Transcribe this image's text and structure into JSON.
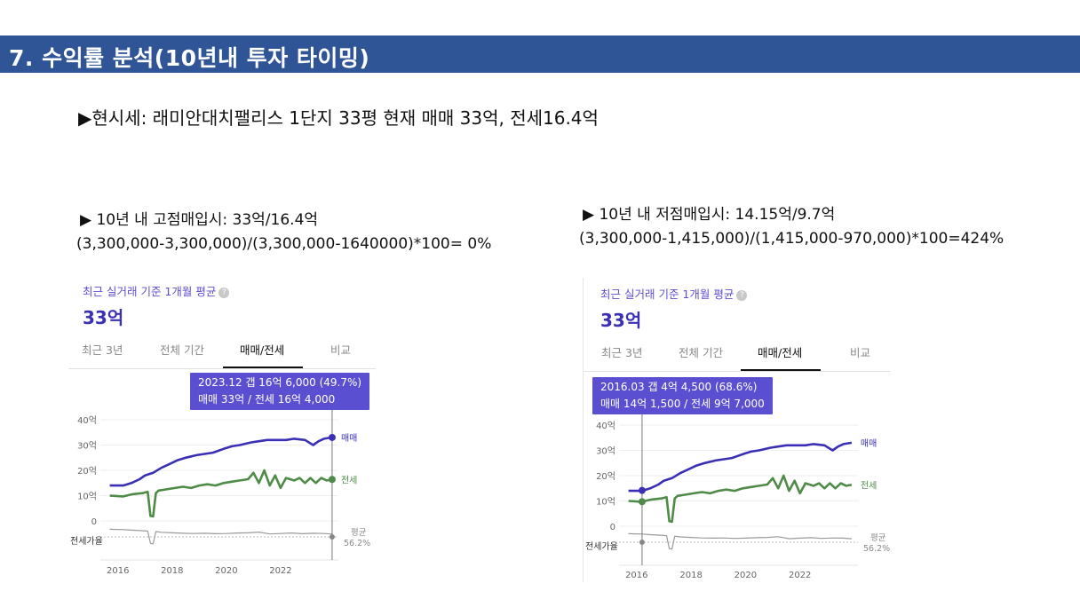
{
  "slide": {
    "title": "7. 수익률 분석(10년내 투자 타이밍)",
    "subtitle": "▶현시세: 래미안대치팰리스 1단지 33평 현재 매매 33억, 전세16.4억"
  },
  "calc_left": {
    "heading": "▶ 10년 내 고점매입시: 33억/16.4억",
    "formula": "(3,300,000-3,300,000)/(3,300,000-1640000)*100= 0%"
  },
  "calc_right": {
    "heading": "▶ 10년 내 저점매입시: 14.15억/9.7억",
    "formula": "(3,300,000-1,415,000)/(1,415,000-970,000)*100=424%"
  },
  "colors": {
    "header": "#2f5597",
    "sale": "#3a2fb5",
    "lease": "#4e8b46",
    "ratio": "#9a9a9a",
    "accent": "#5b4fd1"
  },
  "panels": [
    {
      "caption": "최근 실거래 기준 1개월 평균",
      "help_icon": "?",
      "price": "33억",
      "tabs": [
        "최근 3년",
        "전체 기간",
        "매매/전세",
        "비교"
      ],
      "active_tab": "매매/전세",
      "tooltip_line1": "2023.12  갭 16억 6,000 (49.7%)",
      "tooltip_line2": "매매 33억 / 전세 16억 4,000",
      "cursor_year": 2023.9,
      "marker_sale": 33,
      "marker_lease": 16.4
    },
    {
      "caption": "최근 실거래 기준 1개월 평균",
      "help_icon": "?",
      "price": "33억",
      "tabs": [
        "최근 3년",
        "전체 기간",
        "매매/전세",
        "비교"
      ],
      "active_tab": "매매/전세",
      "tooltip_line1": "2016.03  갭 4억 4,500 (68.6%)",
      "tooltip_line2": "매매 14억 1,500 / 전세 9억 7,000",
      "cursor_year": 2016.2,
      "marker_sale": 14.15,
      "marker_lease": 9.7
    }
  ],
  "chart_data": {
    "type": "line",
    "y_ticks": [
      "40억",
      "30억",
      "20억",
      "10억",
      "0"
    ],
    "ylim": [
      0,
      40
    ],
    "x_ticks": [
      "2016",
      "2018",
      "2020",
      "2022"
    ],
    "xlim": [
      2015.55,
      2024.0
    ],
    "ratio_label": "전세가율",
    "ratio_avg_label": "평균",
    "ratio_avg_value": "56.2%",
    "series": [
      {
        "name": "매매",
        "color": "#3a2fb5",
        "x": [
          2015.7,
          2016.2,
          2016.5,
          2016.8,
          2017.0,
          2017.3,
          2017.6,
          2017.9,
          2018.2,
          2018.5,
          2018.9,
          2019.2,
          2019.5,
          2019.9,
          2020.2,
          2020.5,
          2020.9,
          2021.2,
          2021.5,
          2021.9,
          2022.2,
          2022.5,
          2022.9,
          2023.2,
          2023.4,
          2023.6,
          2023.9
        ],
        "values": [
          14,
          14,
          15,
          16.5,
          18,
          19,
          21,
          22.5,
          24,
          25,
          26,
          26.5,
          27,
          28.5,
          29.5,
          30,
          31,
          31.5,
          32,
          32,
          32,
          32.5,
          32,
          30,
          31.5,
          32.5,
          33
        ]
      },
      {
        "name": "전세",
        "color": "#4e8b46",
        "x": [
          2015.7,
          2016.2,
          2016.5,
          2016.9,
          2017.1,
          2017.2,
          2017.3,
          2017.4,
          2017.5,
          2017.8,
          2018.1,
          2018.4,
          2018.7,
          2019.0,
          2019.3,
          2019.6,
          2019.9,
          2020.2,
          2020.5,
          2020.8,
          2021.0,
          2021.2,
          2021.4,
          2021.6,
          2021.8,
          2022.0,
          2022.2,
          2022.5,
          2022.7,
          2022.9,
          2023.1,
          2023.3,
          2023.5,
          2023.7,
          2023.9
        ],
        "values": [
          10,
          9.7,
          10.5,
          11,
          11.5,
          2,
          1.8,
          11,
          12,
          12.5,
          13,
          13.5,
          13,
          14,
          14.5,
          14,
          15,
          15.5,
          16,
          16.5,
          19,
          15,
          20,
          14,
          18,
          13,
          17,
          16,
          17,
          15,
          17,
          15,
          17,
          16,
          16.4
        ]
      },
      {
        "name": "전세가율",
        "color": "#9a9a9a",
        "x": [
          2015.7,
          2016.2,
          2016.5,
          2016.9,
          2017.1,
          2017.2,
          2017.3,
          2017.4,
          2017.6,
          2018.0,
          2018.4,
          2018.8,
          2019.2,
          2019.6,
          2020.0,
          2020.4,
          2020.8,
          2021.2,
          2021.6,
          2022.0,
          2022.4,
          2022.8,
          2023.2,
          2023.6,
          2023.9
        ],
        "values": [
          70,
          68.6,
          66,
          64,
          62,
          10,
          8,
          60,
          57,
          55,
          53,
          52,
          53,
          51,
          52,
          54,
          55,
          58,
          50,
          52,
          54,
          51,
          53,
          52,
          49.7
        ]
      }
    ]
  }
}
